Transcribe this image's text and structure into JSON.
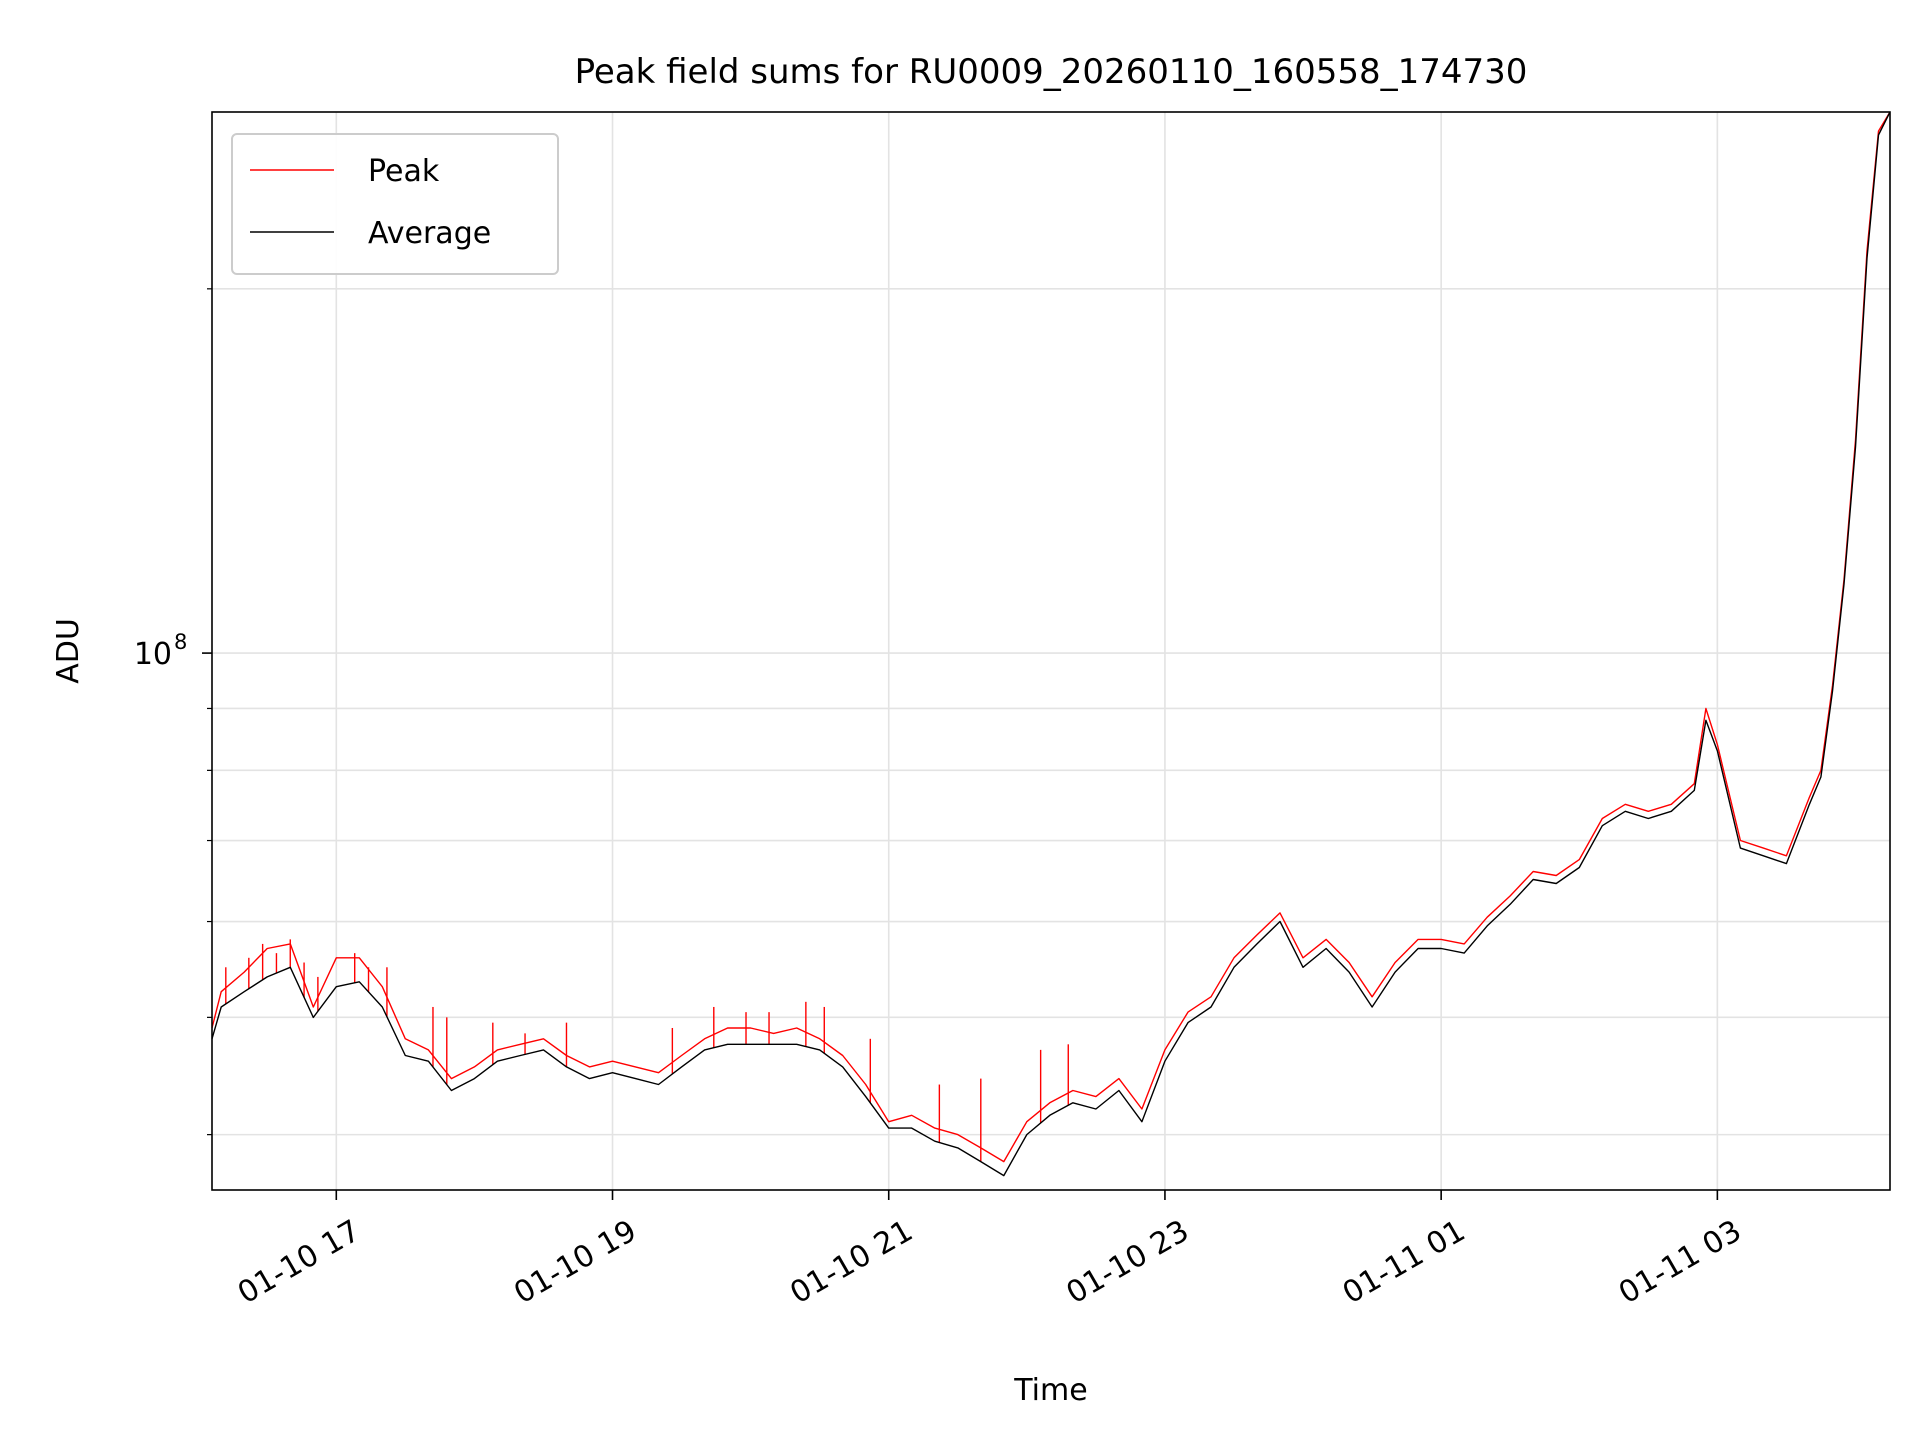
{
  "chart_data": {
    "type": "line",
    "title": "Peak field sums for RU0009_20260110_160558_174730",
    "xlabel": "Time",
    "ylabel": "ADU",
    "y_scale": "log",
    "ylim": [
      36000000,
      280000000
    ],
    "xlim": [
      "2026-01-10 16:06",
      "2026-01-11 04:15"
    ],
    "x_ticks": [
      "2026-01-10 17:00",
      "2026-01-10 19:00",
      "2026-01-10 21:00",
      "2026-01-10 23:00",
      "2026-01-11 01:00",
      "2026-01-11 03:00"
    ],
    "x_tick_labels": [
      "01-10 17",
      "01-10 19",
      "01-10 21",
      "01-10 23",
      "01-11 01",
      "01-11 03"
    ],
    "y_major_ticks": [
      100000000
    ],
    "y_major_tick_labels": [
      {
        "base": "10",
        "exp": "8"
      }
    ],
    "y_minor_ticks": [
      40000000,
      50000000,
      60000000,
      70000000,
      80000000,
      90000000,
      200000000
    ],
    "grid": true,
    "legend_position": "upper-left",
    "series": [
      {
        "name": "Peak",
        "color": "#ff0000",
        "x": [
          "2026-01-10 16:06",
          "2026-01-10 16:10",
          "2026-01-10 16:20",
          "2026-01-10 16:30",
          "2026-01-10 16:40",
          "2026-01-10 16:50",
          "2026-01-10 17:00",
          "2026-01-10 17:10",
          "2026-01-10 17:20",
          "2026-01-10 17:30",
          "2026-01-10 17:40",
          "2026-01-10 17:50",
          "2026-01-10 18:00",
          "2026-01-10 18:10",
          "2026-01-10 18:20",
          "2026-01-10 18:30",
          "2026-01-10 18:40",
          "2026-01-10 18:50",
          "2026-01-10 19:00",
          "2026-01-10 19:10",
          "2026-01-10 19:20",
          "2026-01-10 19:30",
          "2026-01-10 19:40",
          "2026-01-10 19:50",
          "2026-01-10 20:00",
          "2026-01-10 20:10",
          "2026-01-10 20:20",
          "2026-01-10 20:30",
          "2026-01-10 20:40",
          "2026-01-10 20:50",
          "2026-01-10 21:00",
          "2026-01-10 21:10",
          "2026-01-10 21:20",
          "2026-01-10 21:30",
          "2026-01-10 21:40",
          "2026-01-10 21:50",
          "2026-01-10 22:00",
          "2026-01-10 22:10",
          "2026-01-10 22:20",
          "2026-01-10 22:30",
          "2026-01-10 22:40",
          "2026-01-10 22:50",
          "2026-01-10 23:00",
          "2026-01-10 23:10",
          "2026-01-10 23:20",
          "2026-01-10 23:30",
          "2026-01-10 23:40",
          "2026-01-10 23:50",
          "2026-01-11 00:00",
          "2026-01-11 00:10",
          "2026-01-11 00:20",
          "2026-01-11 00:30",
          "2026-01-11 00:40",
          "2026-01-11 00:50",
          "2026-01-11 01:00",
          "2026-01-11 01:10",
          "2026-01-11 01:20",
          "2026-01-11 01:30",
          "2026-01-11 01:40",
          "2026-01-11 01:50",
          "2026-01-11 02:00",
          "2026-01-11 02:10",
          "2026-01-11 02:20",
          "2026-01-11 02:30",
          "2026-01-11 02:40",
          "2026-01-11 02:50",
          "2026-01-11 02:55",
          "2026-01-11 03:00",
          "2026-01-11 03:10",
          "2026-01-11 03:20",
          "2026-01-11 03:30",
          "2026-01-11 03:40",
          "2026-01-11 03:45",
          "2026-01-11 03:50",
          "2026-01-11 03:55",
          "2026-01-11 04:00",
          "2026-01-11 04:05",
          "2026-01-11 04:10",
          "2026-01-11 04:15"
        ],
        "values": [
          49000000,
          52500000,
          54500000,
          57000000,
          57500000,
          51000000,
          56000000,
          56000000,
          53000000,
          48000000,
          47000000,
          44500000,
          45500000,
          47000000,
          47500000,
          48000000,
          46500000,
          45500000,
          46000000,
          45500000,
          45000000,
          46500000,
          48000000,
          49000000,
          49000000,
          48500000,
          49000000,
          48000000,
          46500000,
          44000000,
          41000000,
          41500000,
          40500000,
          40000000,
          39000000,
          38000000,
          41000000,
          42500000,
          43500000,
          43000000,
          44500000,
          42000000,
          47000000,
          50500000,
          52000000,
          56000000,
          58500000,
          61000000,
          56000000,
          58000000,
          55500000,
          52000000,
          55500000,
          58000000,
          58000000,
          57500000,
          60500000,
          63000000,
          66000000,
          65500000,
          67500000,
          73000000,
          75000000,
          74000000,
          75000000,
          78000000,
          90000000,
          84000000,
          70000000,
          69000000,
          68000000,
          76000000,
          80000000,
          94000000,
          115000000,
          150000000,
          215000000,
          270000000,
          280000000
        ],
        "spikes_x": [
          "2026-01-10 16:12",
          "2026-01-10 16:22",
          "2026-01-10 16:28",
          "2026-01-10 16:34",
          "2026-01-10 16:40",
          "2026-01-10 16:46",
          "2026-01-10 16:52",
          "2026-01-10 17:08",
          "2026-01-10 17:14",
          "2026-01-10 17:22",
          "2026-01-10 17:42",
          "2026-01-10 17:48",
          "2026-01-10 18:08",
          "2026-01-10 18:22",
          "2026-01-10 18:40",
          "2026-01-10 19:26",
          "2026-01-10 19:44",
          "2026-01-10 19:58",
          "2026-01-10 20:08",
          "2026-01-10 20:24",
          "2026-01-10 20:32",
          "2026-01-10 20:52",
          "2026-01-10 21:22",
          "2026-01-10 21:40",
          "2026-01-10 22:06",
          "2026-01-10 22:18"
        ],
        "spikes_values": [
          55000000,
          56000000,
          57500000,
          56500000,
          58000000,
          55500000,
          54000000,
          56500000,
          55000000,
          55000000,
          51000000,
          50000000,
          49500000,
          48500000,
          49500000,
          49000000,
          51000000,
          50500000,
          50500000,
          51500000,
          51000000,
          48000000,
          44000000,
          44500000,
          47000000,
          47500000
        ]
      },
      {
        "name": "Average",
        "color": "#000000",
        "x": [
          "2026-01-10 16:06",
          "2026-01-10 16:10",
          "2026-01-10 16:20",
          "2026-01-10 16:30",
          "2026-01-10 16:40",
          "2026-01-10 16:50",
          "2026-01-10 17:00",
          "2026-01-10 17:10",
          "2026-01-10 17:20",
          "2026-01-10 17:30",
          "2026-01-10 17:40",
          "2026-01-10 17:50",
          "2026-01-10 18:00",
          "2026-01-10 18:10",
          "2026-01-10 18:20",
          "2026-01-10 18:30",
          "2026-01-10 18:40",
          "2026-01-10 18:50",
          "2026-01-10 19:00",
          "2026-01-10 19:10",
          "2026-01-10 19:20",
          "2026-01-10 19:30",
          "2026-01-10 19:40",
          "2026-01-10 19:50",
          "2026-01-10 20:00",
          "2026-01-10 20:10",
          "2026-01-10 20:20",
          "2026-01-10 20:30",
          "2026-01-10 20:40",
          "2026-01-10 20:50",
          "2026-01-10 21:00",
          "2026-01-10 21:10",
          "2026-01-10 21:20",
          "2026-01-10 21:30",
          "2026-01-10 21:40",
          "2026-01-10 21:50",
          "2026-01-10 22:00",
          "2026-01-10 22:10",
          "2026-01-10 22:20",
          "2026-01-10 22:30",
          "2026-01-10 22:40",
          "2026-01-10 22:50",
          "2026-01-10 23:00",
          "2026-01-10 23:10",
          "2026-01-10 23:20",
          "2026-01-10 23:30",
          "2026-01-10 23:40",
          "2026-01-10 23:50",
          "2026-01-11 00:00",
          "2026-01-11 00:10",
          "2026-01-11 00:20",
          "2026-01-11 00:30",
          "2026-01-11 00:40",
          "2026-01-11 00:50",
          "2026-01-11 01:00",
          "2026-01-11 01:10",
          "2026-01-11 01:20",
          "2026-01-11 01:30",
          "2026-01-11 01:40",
          "2026-01-11 01:50",
          "2026-01-11 02:00",
          "2026-01-11 02:10",
          "2026-01-11 02:20",
          "2026-01-11 02:30",
          "2026-01-11 02:40",
          "2026-01-11 02:50",
          "2026-01-11 02:55",
          "2026-01-11 03:00",
          "2026-01-11 03:10",
          "2026-01-11 03:20",
          "2026-01-11 03:30",
          "2026-01-11 03:40",
          "2026-01-11 03:45",
          "2026-01-11 03:50",
          "2026-01-11 03:55",
          "2026-01-11 04:00",
          "2026-01-11 04:05",
          "2026-01-11 04:10",
          "2026-01-11 04:15"
        ],
        "values": [
          48000000,
          51000000,
          52500000,
          54000000,
          55000000,
          50000000,
          53000000,
          53500000,
          51000000,
          46500000,
          46000000,
          43500000,
          44500000,
          46000000,
          46500000,
          47000000,
          45500000,
          44500000,
          45000000,
          44500000,
          44000000,
          45500000,
          47000000,
          47500000,
          47500000,
          47500000,
          47500000,
          47000000,
          45500000,
          43000000,
          40500000,
          40500000,
          39500000,
          39000000,
          38000000,
          37000000,
          40000000,
          41500000,
          42500000,
          42000000,
          43500000,
          41000000,
          46000000,
          49500000,
          51000000,
          55000000,
          57500000,
          60000000,
          55000000,
          57000000,
          54500000,
          51000000,
          54500000,
          57000000,
          57000000,
          56500000,
          59500000,
          62000000,
          65000000,
          64500000,
          66500000,
          72000000,
          74000000,
          73000000,
          74000000,
          77000000,
          88000000,
          83000000,
          69000000,
          68000000,
          67000000,
          75000000,
          79000000,
          93000000,
          114000000,
          148000000,
          212000000,
          268000000,
          280000000
        ]
      }
    ]
  }
}
